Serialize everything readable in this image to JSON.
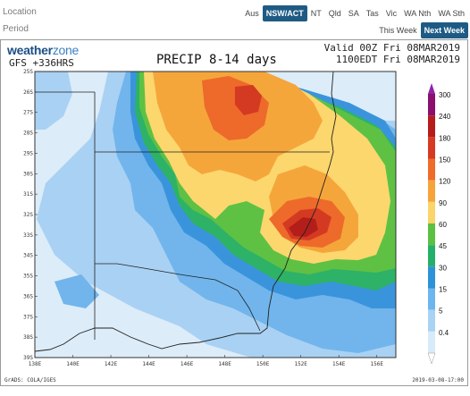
{
  "filters": {
    "location_label": "Location",
    "period_label": "Period",
    "locations": [
      {
        "label": "Aus",
        "active": false
      },
      {
        "label": "NSW/ACT",
        "active": true
      },
      {
        "label": "NT",
        "active": false
      },
      {
        "label": "Qld",
        "active": false
      },
      {
        "label": "SA",
        "active": false
      },
      {
        "label": "Tas",
        "active": false
      },
      {
        "label": "Vic",
        "active": false
      },
      {
        "label": "WA Nth",
        "active": false
      },
      {
        "label": "WA Sth",
        "active": false
      }
    ],
    "periods": [
      {
        "label": "This Week",
        "active": false
      },
      {
        "label": "Next Week",
        "active": true
      }
    ]
  },
  "map": {
    "brand_weather": "weather",
    "brand_zone": "zone",
    "model": "GFS +336HRS",
    "title": "PRECIP 8-14 days",
    "valid_line1": "Valid 00Z Fri 08MAR2019",
    "valid_line2": "1100EDT Fri 08MAR2019",
    "credit_left": "GrADS: COLA/IGES",
    "credit_right": "2019-03-08-17:00",
    "lat_labels": [
      "25S",
      "26S",
      "27S",
      "28S",
      "29S",
      "30S",
      "31S",
      "32S",
      "33S",
      "34S",
      "35S",
      "36S",
      "37S",
      "38S",
      "39S"
    ],
    "lon_labels": [
      "138E",
      "140E",
      "142E",
      "144E",
      "146E",
      "148E",
      "150E",
      "152E",
      "154E",
      "156E"
    ],
    "legend": {
      "thresholds": [
        "300",
        "240",
        "180",
        "150",
        "120",
        "90",
        "60",
        "45",
        "30",
        "15",
        "5",
        "0.4"
      ],
      "colors": [
        "#8b0f6e",
        "#b71c1c",
        "#d63a22",
        "#ef6c2a",
        "#f6a43a",
        "#fbd46a",
        "#5cc044",
        "#25b06a",
        "#2e92d9",
        "#6db5ee",
        "#a8d3f5",
        "#d8ebfa"
      ]
    },
    "fill_colors": {
      "f0": "#dcecf9",
      "f1": "#a9d1f3",
      "f2": "#71b5ec",
      "f3": "#3a94dc",
      "f4": "#2db267",
      "f5": "#5ec144",
      "f6": "#fcd76e",
      "f7": "#f5a63b",
      "f8": "#ed6a2b",
      "f9": "#d43a22",
      "f10": "#b31e1a"
    }
  }
}
